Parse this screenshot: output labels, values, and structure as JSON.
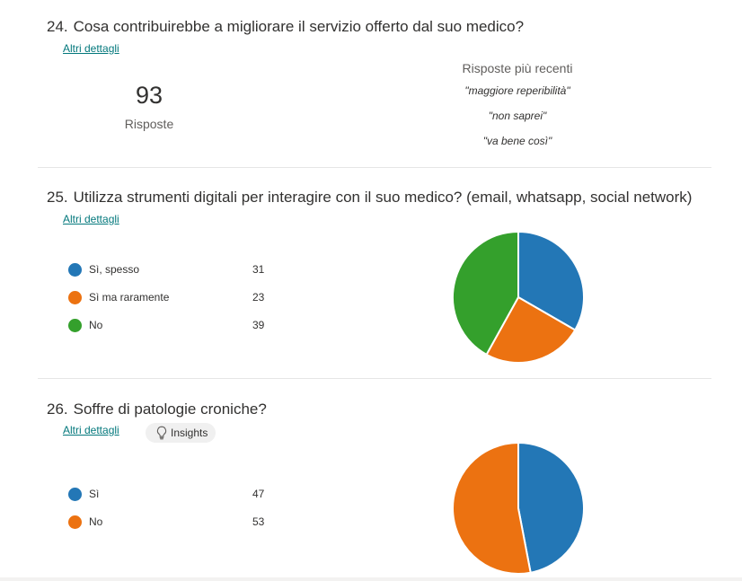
{
  "colors": {
    "blue": "#2377b6",
    "orange": "#ec7211",
    "green": "#34a02c",
    "link": "#03787c"
  },
  "q24": {
    "number": "24.",
    "title": "Cosa contribuirebbe a migliorare il servizio offerto dal suo medico?",
    "details_link": "Altri dettagli",
    "response_count": "93",
    "response_label": "Risposte",
    "recent_title": "Risposte più recenti",
    "recent": [
      "\"maggiore reperibilità\"",
      "\"non saprei\"",
      "\"va bene così\""
    ]
  },
  "q25": {
    "number": "25.",
    "title": "Utilizza strumenti digitali per interagire con il suo medico? (email, whatsapp, social network)",
    "details_link": "Altri dettagli",
    "options": [
      {
        "label": "Sì, spesso",
        "value": 31,
        "color": "#2377b6"
      },
      {
        "label": "Sì ma raramente",
        "value": 23,
        "color": "#ec7211"
      },
      {
        "label": "No",
        "value": 39,
        "color": "#34a02c"
      }
    ]
  },
  "q26": {
    "number": "26.",
    "title": "Soffre di patologie croniche?",
    "details_link": "Altri dettagli",
    "insights_label": "Insights",
    "insights_icon": "lightbulb-icon",
    "options": [
      {
        "label": "Sì",
        "value": 47,
        "color": "#2377b6"
      },
      {
        "label": "No",
        "value": 53,
        "color": "#ec7211"
      }
    ]
  },
  "chart_data": [
    {
      "type": "pie",
      "title": "",
      "categories": [
        "Sì, spesso",
        "Sì ma raramente",
        "No"
      ],
      "values": [
        31,
        23,
        39
      ],
      "colors": [
        "#2377b6",
        "#ec7211",
        "#34a02c"
      ],
      "legend": "left"
    },
    {
      "type": "pie",
      "title": "",
      "categories": [
        "Sì",
        "No"
      ],
      "values": [
        47,
        53
      ],
      "colors": [
        "#2377b6",
        "#ec7211"
      ],
      "legend": "left"
    }
  ]
}
